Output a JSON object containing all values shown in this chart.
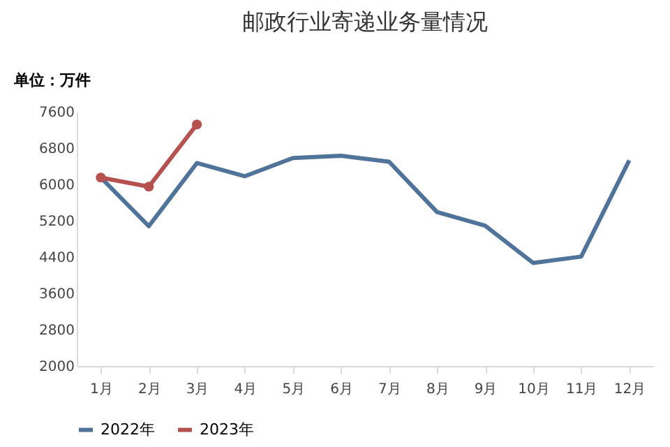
{
  "chart_data": {
    "type": "line",
    "title": "邮政行业寄递业务量情况",
    "ylabel": "单位：万件",
    "categories": [
      "1月",
      "2月",
      "3月",
      "4月",
      "5月",
      "6月",
      "7月",
      "8月",
      "9月",
      "10月",
      "11月",
      "12月"
    ],
    "series": [
      {
        "name": "2022年",
        "color": "#4f7399",
        "marker": "none",
        "values": [
          6150,
          5080,
          6470,
          6180,
          6580,
          6630,
          6500,
          5390,
          5090,
          4270,
          4410,
          6530
        ]
      },
      {
        "name": "2023年",
        "color": "#b5514f",
        "marker": "circle",
        "values": [
          6150,
          5950,
          7320,
          null,
          null,
          null,
          null,
          null,
          null,
          null,
          null,
          null
        ]
      }
    ],
    "ylim": [
      2000,
      7600
    ],
    "yticks": [
      2000,
      2800,
      3600,
      4400,
      5200,
      6000,
      6800,
      7600
    ],
    "grid": false,
    "legend": "bottom"
  }
}
